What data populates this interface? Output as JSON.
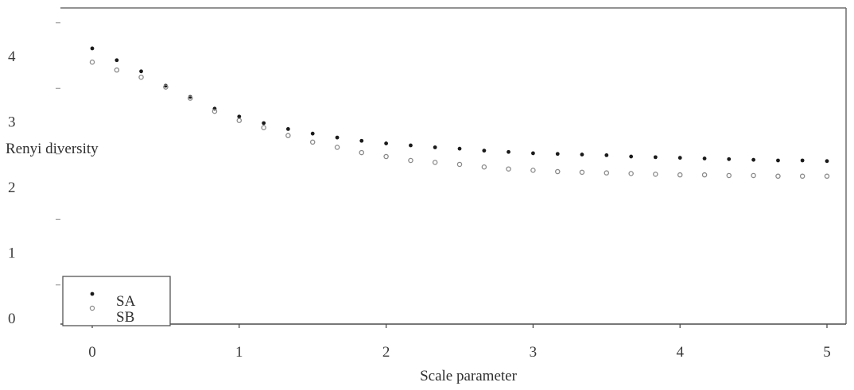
{
  "chart_data": {
    "type": "scatter",
    "title": "",
    "xlabel": "Scale parameter",
    "ylabel": "Renyi diversity",
    "xlim": [
      -0.2,
      5.2
    ],
    "ylim": [
      0,
      4.7
    ],
    "xticks": [
      "0",
      "1",
      "2",
      "3",
      "4",
      "5"
    ],
    "yticks": [
      "0",
      "1",
      "2",
      "3",
      "4"
    ],
    "grid": false,
    "legend": "bottom-left",
    "x": [
      0,
      0.167,
      0.333,
      0.5,
      0.667,
      0.833,
      1.0,
      1.167,
      1.333,
      1.5,
      1.667,
      1.833,
      2.0,
      2.167,
      2.333,
      2.5,
      2.667,
      2.833,
      3.0,
      3.167,
      3.333,
      3.5,
      3.667,
      3.833,
      4.0,
      4.167,
      4.333,
      4.5,
      4.667,
      4.833,
      5.0
    ],
    "series": [
      {
        "name": "SA",
        "marker": "filled",
        "color": "#1a1a1a",
        "values": [
          4.11,
          3.93,
          3.76,
          3.54,
          3.37,
          3.19,
          3.07,
          2.97,
          2.88,
          2.81,
          2.75,
          2.7,
          2.66,
          2.63,
          2.6,
          2.58,
          2.55,
          2.53,
          2.51,
          2.5,
          2.49,
          2.48,
          2.46,
          2.45,
          2.44,
          2.43,
          2.42,
          2.41,
          2.4,
          2.4,
          2.39
        ]
      },
      {
        "name": "SB",
        "marker": "open",
        "color": "#8a8a8a",
        "values": [
          3.9,
          3.78,
          3.67,
          3.52,
          3.35,
          3.15,
          3.01,
          2.9,
          2.78,
          2.68,
          2.6,
          2.52,
          2.46,
          2.4,
          2.37,
          2.34,
          2.3,
          2.27,
          2.25,
          2.23,
          2.22,
          2.21,
          2.2,
          2.19,
          2.18,
          2.18,
          2.17,
          2.17,
          2.16,
          2.16,
          2.16
        ]
      }
    ]
  }
}
